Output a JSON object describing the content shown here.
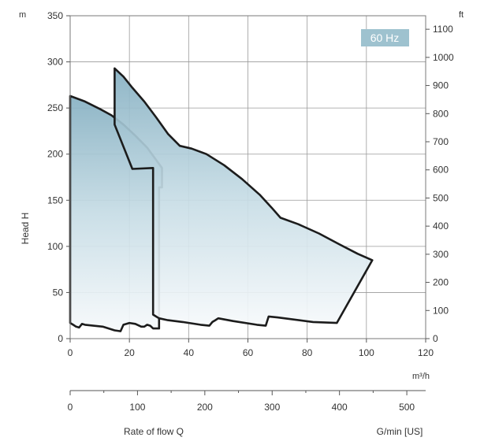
{
  "chart_data": {
    "type": "area",
    "badge": "60 Hz",
    "x_axis": {
      "unit": "m³/h",
      "range": [
        0,
        120
      ],
      "ticks": [
        "0",
        "20",
        "40",
        "60",
        "80",
        "100",
        "120"
      ]
    },
    "y_left": {
      "unit": "m",
      "range": [
        0,
        350
      ],
      "ticks": [
        "0",
        "50",
        "100",
        "150",
        "200",
        "250",
        "300",
        "350"
      ]
    },
    "y_right": {
      "unit": "ft",
      "range": [
        0,
        1148
      ],
      "ticks": [
        "0",
        "100",
        "200",
        "300",
        "400",
        "500",
        "600",
        "700",
        "800",
        "900",
        "1000",
        "1100"
      ]
    },
    "x2_axis": {
      "unit": "G/min [US]",
      "range": [
        0,
        528
      ],
      "ticks": [
        "0",
        "100",
        "200",
        "300",
        "400",
        "500"
      ]
    },
    "ylabel": "Head H",
    "xlabel": "Rate of flow Q",
    "grid": true,
    "colors": {
      "fill_top": "#8fb7c7",
      "fill_bottom": "#f4f8fa",
      "outline": "#1c1c1c",
      "badge": "#9ec2cf",
      "grid": "#9a9a9a"
    },
    "series": [
      {
        "name": "",
        "points": [
          [
            0,
            263
          ],
          [
            5,
            257
          ],
          [
            10,
            249
          ],
          [
            14,
            242
          ],
          [
            18,
            232
          ],
          [
            22,
            220
          ],
          [
            26,
            207
          ],
          [
            31,
            185
          ],
          [
            31,
            164
          ],
          [
            30,
            164
          ],
          [
            30,
            11
          ],
          [
            28,
            11
          ],
          [
            27,
            14
          ],
          [
            26,
            15
          ],
          [
            25,
            13
          ],
          [
            24,
            13
          ],
          [
            22,
            16
          ],
          [
            20,
            17
          ],
          [
            19,
            16
          ],
          [
            18,
            15
          ],
          [
            17,
            8
          ],
          [
            15,
            9
          ],
          [
            11,
            13
          ],
          [
            5,
            15
          ],
          [
            4,
            16
          ],
          [
            3,
            12
          ],
          [
            2,
            13
          ],
          [
            1,
            15
          ],
          [
            0,
            17
          ]
        ]
      },
      {
        "name": "",
        "points": [
          [
            15,
            293
          ],
          [
            18,
            284
          ],
          [
            21,
            272
          ],
          [
            25,
            257
          ],
          [
            29,
            240
          ],
          [
            33,
            222
          ],
          [
            37,
            209
          ],
          [
            41,
            206
          ],
          [
            46,
            200
          ],
          [
            52,
            188
          ],
          [
            58,
            173
          ],
          [
            64,
            156
          ],
          [
            68,
            142
          ],
          [
            71,
            131
          ],
          [
            77,
            124
          ],
          [
            84,
            114
          ],
          [
            91,
            102
          ],
          [
            97,
            92
          ],
          [
            102,
            85
          ],
          [
            90,
            17
          ],
          [
            82,
            18
          ],
          [
            70,
            23
          ],
          [
            67,
            24
          ],
          [
            66,
            14
          ],
          [
            63,
            15
          ],
          [
            55,
            19
          ],
          [
            50,
            22
          ],
          [
            49,
            20
          ],
          [
            48,
            18
          ],
          [
            47,
            14
          ],
          [
            44,
            15
          ],
          [
            38,
            18
          ],
          [
            33,
            20
          ],
          [
            30,
            22
          ],
          [
            29,
            24
          ],
          [
            28,
            26
          ],
          [
            28,
            185
          ],
          [
            21,
            184
          ],
          [
            15,
            232
          ]
        ]
      }
    ]
  }
}
